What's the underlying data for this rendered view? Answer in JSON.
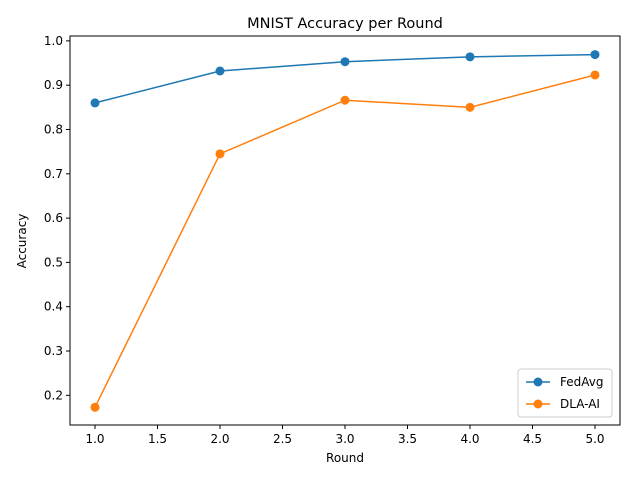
{
  "chart_data": {
    "type": "line",
    "title": "MNIST Accuracy per Round",
    "xlabel": "Round",
    "ylabel": "Accuracy",
    "x": [
      1,
      2,
      3,
      4,
      5
    ],
    "xlim": [
      0.8,
      5.2
    ],
    "ylim": [
      0.133,
      1.011
    ],
    "xticks": [
      1.0,
      1.5,
      2.0,
      2.5,
      3.0,
      3.5,
      4.0,
      4.5,
      5.0
    ],
    "xtick_labels": [
      "1.0",
      "1.5",
      "2.0",
      "2.5",
      "3.0",
      "3.5",
      "4.0",
      "4.5",
      "5.0"
    ],
    "yticks": [
      0.2,
      0.3,
      0.4,
      0.5,
      0.6,
      0.7,
      0.8,
      0.9,
      1.0
    ],
    "ytick_labels": [
      "0.2",
      "0.3",
      "0.4",
      "0.5",
      "0.6",
      "0.7",
      "0.8",
      "0.9",
      "1.0"
    ],
    "grid": false,
    "legend_position": "lower-right",
    "series": [
      {
        "name": "FedAvg",
        "color": "#1f77b4",
        "values": [
          0.86,
          0.932,
          0.953,
          0.964,
          0.969
        ]
      },
      {
        "name": "DLA-AI",
        "color": "#ff7f0e",
        "values": [
          0.173,
          0.745,
          0.866,
          0.85,
          0.923
        ]
      }
    ]
  }
}
